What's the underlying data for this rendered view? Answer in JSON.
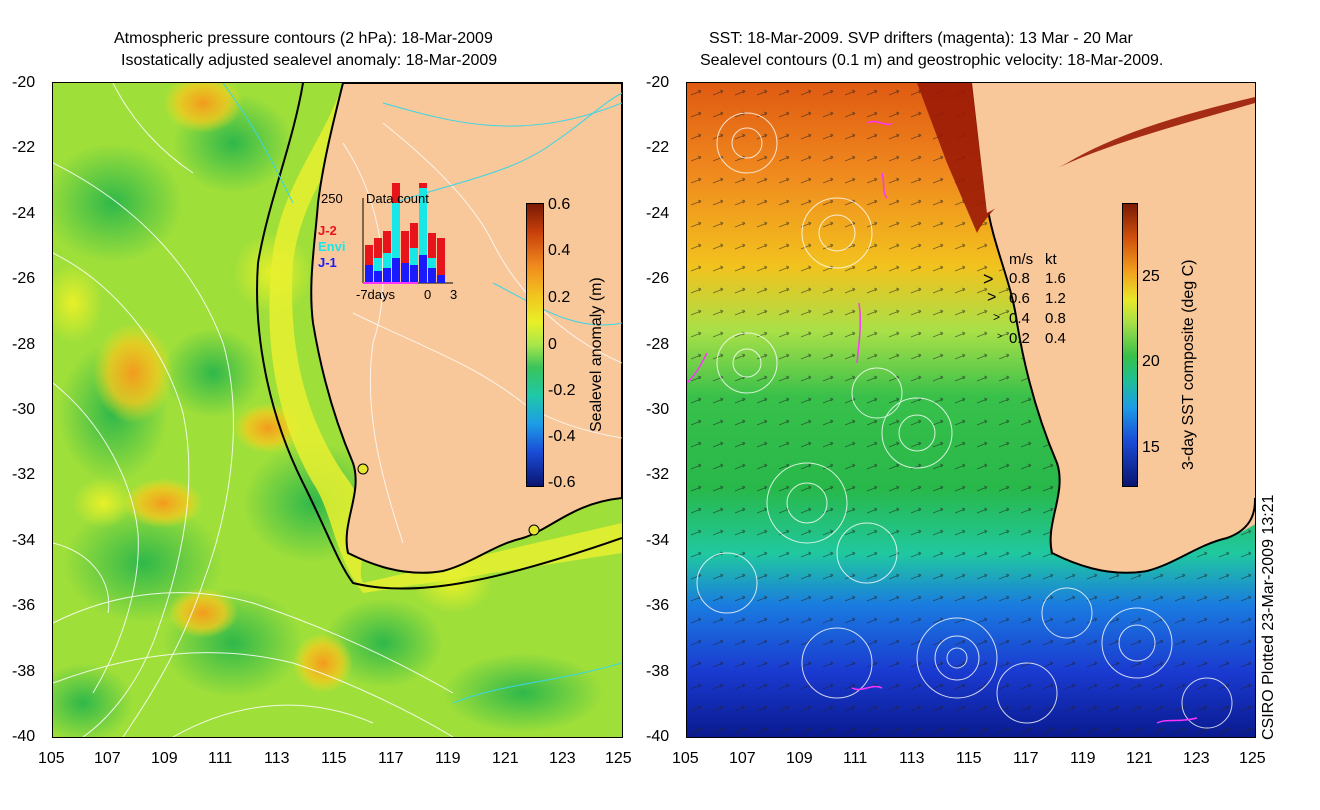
{
  "left_panel": {
    "title_line1": "Atmospheric pressure contours (2 hPa): 18-Mar-2009",
    "title_line2": "Isostatically adjusted sealevel anomaly: 18-Mar-2009",
    "colorbar_label": "Sealevel anomaly (m)",
    "colorbar_ticks": [
      "0.6",
      "0.4",
      "0.2",
      "0",
      "-0.2",
      "-0.4",
      "-0.6"
    ],
    "inset": {
      "title": "Data count",
      "y_max": "250",
      "x_labels": [
        "-7days",
        "0",
        "3"
      ],
      "satellites": [
        "J-2",
        "Envi",
        "J-1"
      ],
      "satellite_colors": [
        "#e8141b",
        "#19e6e6",
        "#1a1aff"
      ]
    }
  },
  "right_panel": {
    "title_line1": "SST: 18-Mar-2009. SVP drifters (magenta): 13 Mar - 20 Mar",
    "title_line2": "Sealevel contours (0.1 m) and geostrophic velocity: 18-Mar-2009.",
    "colorbar_label": "3-day SST composite (deg C)",
    "colorbar_ticks": [
      "25",
      "20",
      "15"
    ],
    "velocity_legend": {
      "header_ms": "m/s",
      "header_kt": "kt",
      "rows": [
        {
          "ms": "0.8",
          "kt": "1.6"
        },
        {
          "ms": "0.6",
          "kt": "1.2"
        },
        {
          "ms": "0.4",
          "kt": "0.8"
        },
        {
          "ms": "0.2",
          "kt": "0.4"
        }
      ]
    }
  },
  "axes": {
    "y_ticks": [
      "-20",
      "-22",
      "-24",
      "-26",
      "-28",
      "-30",
      "-32",
      "-34",
      "-36",
      "-38",
      "-40"
    ],
    "x_ticks": [
      "105",
      "107",
      "109",
      "111",
      "113",
      "115",
      "117",
      "119",
      "121",
      "123",
      "125"
    ]
  },
  "credit": "CSIRO Plotted 23-Mar-2009 13:21",
  "colors": {
    "land": "#f8c79a",
    "ocean_mid": "#a8e64a",
    "coastline": "#000000",
    "drifter": "#ff33ff"
  }
}
